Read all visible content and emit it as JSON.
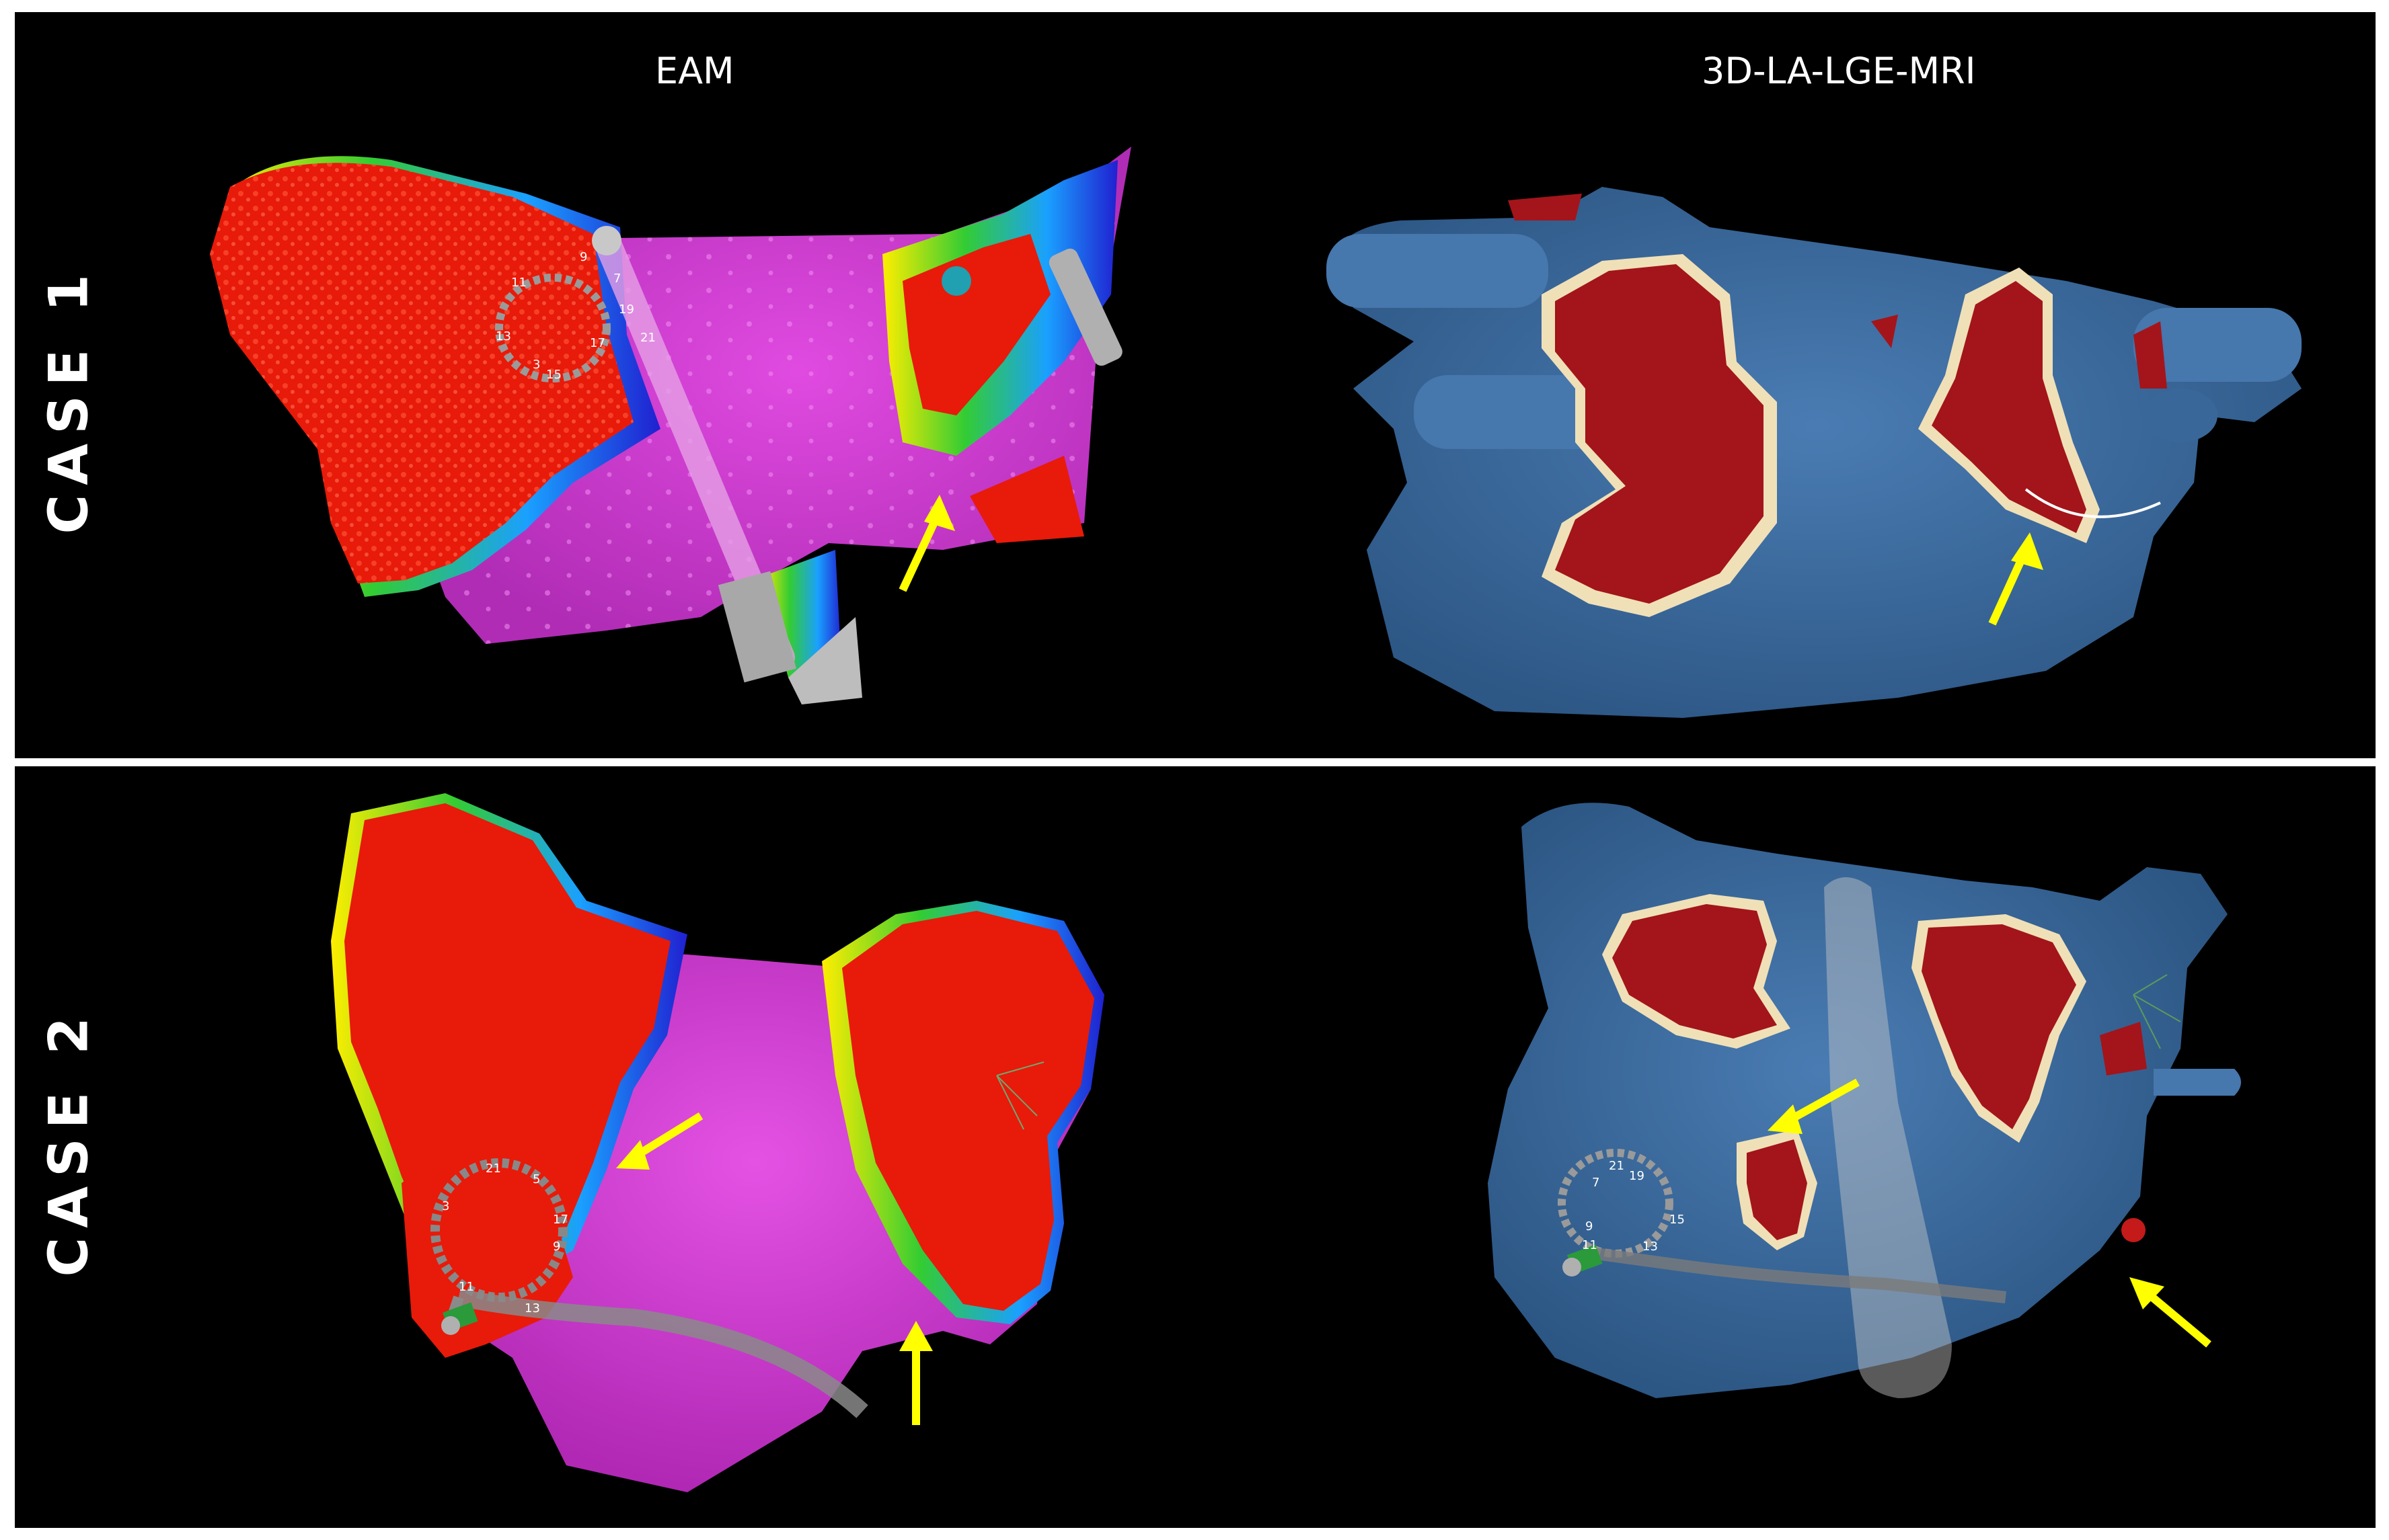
{
  "columns": {
    "left": "EAM",
    "right": "3D-LA-LGE-MRI"
  },
  "rows": [
    {
      "label": "CASE  1"
    },
    {
      "label": "CASE  2"
    }
  ],
  "colors": {
    "background": "#000000",
    "eam_scar": "#e81a0a",
    "eam_healthy": "#cc33cc",
    "mri_wall": "#3f6ea3",
    "mri_fibrosis": "#a3151a",
    "arrow": "#ffff00"
  },
  "catheter_numbers": {
    "case1_eam": [
      "9",
      "7",
      "11",
      "19",
      "13",
      "17",
      "3",
      "15",
      "21"
    ],
    "case2_eam": [
      "21",
      "5",
      "3",
      "17",
      "9",
      "11",
      "13"
    ],
    "case2_mri": [
      "21",
      "19",
      "7",
      "9",
      "11",
      "13",
      "15"
    ]
  }
}
